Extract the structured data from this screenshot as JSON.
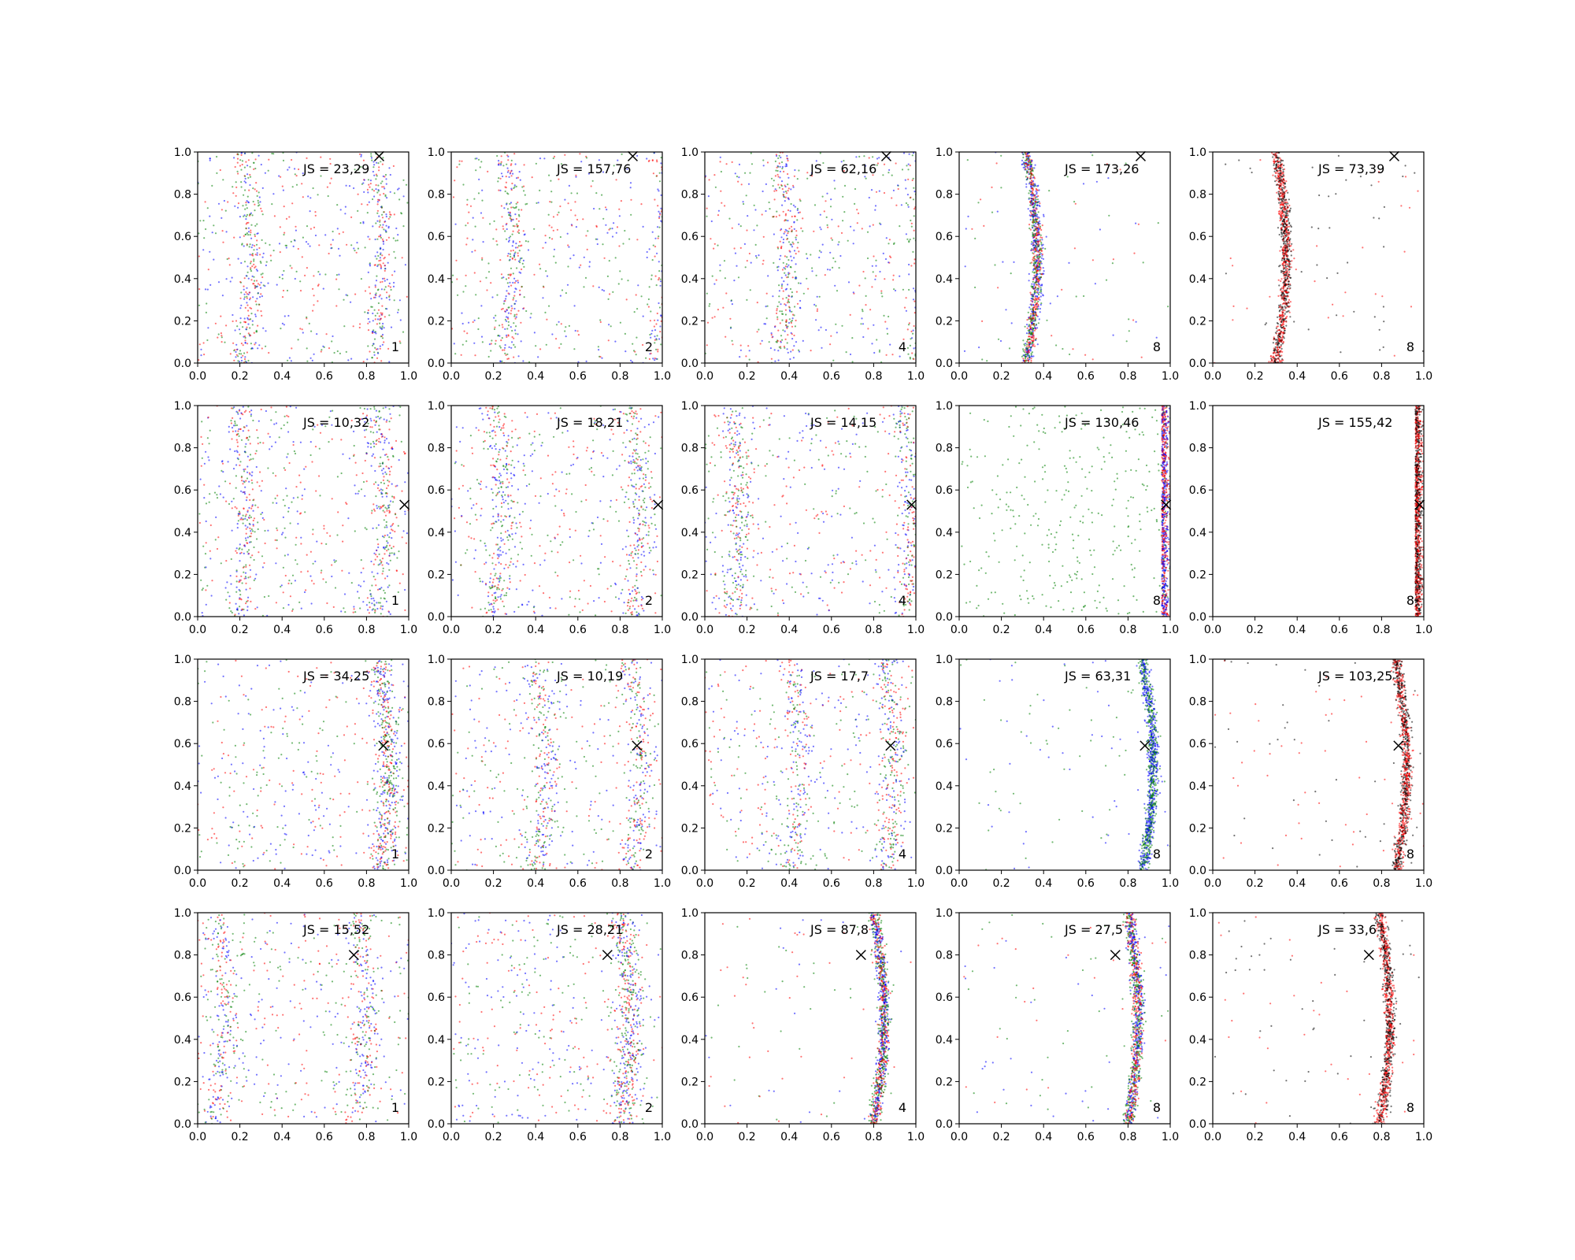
{
  "chart_data": {
    "type": "scatter",
    "layout": {
      "rows": 4,
      "cols": 5
    },
    "xlim": [
      0,
      1
    ],
    "ylim": [
      0,
      1
    ],
    "ticks": [
      "0.0",
      "0.2",
      "0.4",
      "0.6",
      "0.8",
      "1.0"
    ],
    "colors": {
      "blue": "#0000ff",
      "green": "#008000",
      "red": "#ff0000",
      "black": "#000000"
    },
    "markers": [
      {
        "x": 0.86,
        "y": 0.98
      },
      {
        "x": 0.98,
        "y": 0.53
      },
      {
        "x": 0.88,
        "y": 0.59
      },
      {
        "x": 0.74,
        "y": 0.8
      }
    ],
    "panels": [
      {
        "js": "JS = 23,29",
        "k": "1",
        "pattern": "diffuse",
        "bands": [
          0.21,
          0.83
        ],
        "colors": [
          "blue",
          "green",
          "red"
        ]
      },
      {
        "js": "JS = 157,76",
        "k": "2",
        "pattern": "diffuse",
        "bands": [
          0.25,
          0.99
        ],
        "colors": [
          "blue",
          "green",
          "red"
        ]
      },
      {
        "js": "JS = 62,16",
        "k": "4",
        "pattern": "diffuse",
        "bands": [
          0.35,
          0.99
        ],
        "colors": [
          "blue",
          "green",
          "red"
        ]
      },
      {
        "js": "JS = 173,26",
        "k": "8",
        "pattern": "band",
        "bands": [
          0.32
        ],
        "colors": [
          "blue",
          "green",
          "red"
        ]
      },
      {
        "js": "JS = 73,39",
        "k": "8",
        "pattern": "band",
        "bands": [
          0.3
        ],
        "colors": [
          "black",
          "red"
        ]
      },
      {
        "js": "JS = 10,32",
        "k": "1",
        "pattern": "diffuse",
        "bands": [
          0.19,
          0.84
        ],
        "colors": [
          "blue",
          "green",
          "red"
        ]
      },
      {
        "js": "JS = 18,21",
        "k": "2",
        "pattern": "diffuse",
        "bands": [
          0.2,
          0.85
        ],
        "colors": [
          "blue",
          "green",
          "red"
        ]
      },
      {
        "js": "JS = 14,15",
        "k": "4",
        "pattern": "diffuse",
        "bands": [
          0.12,
          0.93
        ],
        "colors": [
          "blue",
          "green",
          "red"
        ]
      },
      {
        "js": "JS = 130,46",
        "k": "8",
        "pattern": "edge",
        "bands": [
          0.96
        ],
        "colors": [
          "green",
          "blue",
          "red"
        ]
      },
      {
        "js": "JS = 155,42",
        "k": "8",
        "pattern": "edge",
        "bands": [
          0.96
        ],
        "colors": [
          "black",
          "red"
        ]
      },
      {
        "js": "JS = 34,25",
        "k": "1",
        "pattern": "diffuse",
        "bands": [
          0.86
        ],
        "colors": [
          "blue",
          "green",
          "red"
        ]
      },
      {
        "js": "JS = 10,19",
        "k": "2",
        "pattern": "diffuse",
        "bands": [
          0.4,
          0.85
        ],
        "colors": [
          "blue",
          "green",
          "red"
        ]
      },
      {
        "js": "JS = 17,7",
        "k": "4",
        "pattern": "diffuse",
        "bands": [
          0.4,
          0.85
        ],
        "colors": [
          "blue",
          "green",
          "red"
        ]
      },
      {
        "js": "JS = 63,31",
        "k": "8",
        "pattern": "band",
        "bands": [
          0.87
        ],
        "colors": [
          "blue",
          "green"
        ]
      },
      {
        "js": "JS = 103,25",
        "k": "8",
        "pattern": "band",
        "bands": [
          0.87
        ],
        "colors": [
          "black",
          "red"
        ]
      },
      {
        "js": "JS = 15,52",
        "k": "1",
        "pattern": "diffuse",
        "bands": [
          0.08,
          0.75
        ],
        "colors": [
          "blue",
          "green",
          "red"
        ]
      },
      {
        "js": "JS = 28,21",
        "k": "2",
        "pattern": "diffuse",
        "bands": [
          0.8
        ],
        "colors": [
          "blue",
          "green",
          "red"
        ]
      },
      {
        "js": "JS = 87,8",
        "k": "4",
        "pattern": "band",
        "bands": [
          0.8
        ],
        "colors": [
          "green",
          "blue",
          "red"
        ]
      },
      {
        "js": "JS = 27,5",
        "k": "8",
        "pattern": "band",
        "bands": [
          0.8
        ],
        "colors": [
          "green",
          "blue",
          "red"
        ]
      },
      {
        "js": "JS = 33,6",
        "k": "8",
        "pattern": "band",
        "bands": [
          0.79
        ],
        "colors": [
          "black",
          "red"
        ]
      }
    ]
  }
}
